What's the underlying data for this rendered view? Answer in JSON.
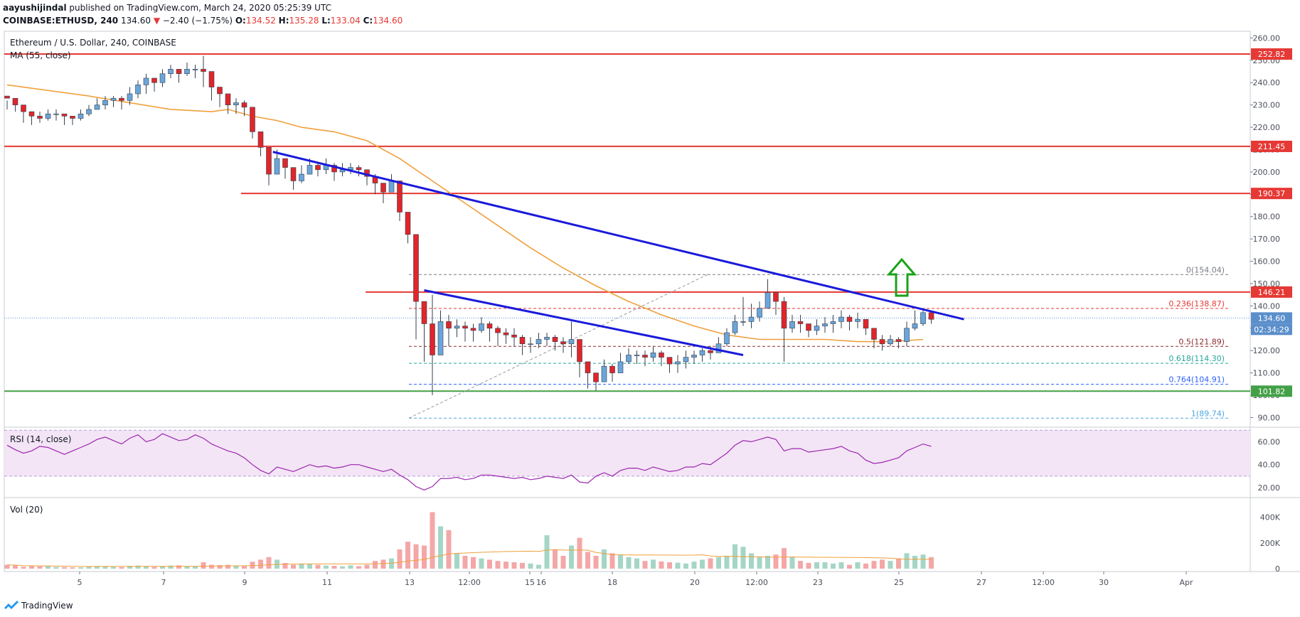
{
  "header": {
    "publisher": "aayushijindal",
    "published_text": "published on TradingView.com, March 24, 2020 05:25:39 UTC",
    "symbol": "COINBASE:ETHUSD, 240",
    "last": "134.60",
    "change_arrow": "▼",
    "change": "−2.40 (−1.75%)",
    "o_label": "O:",
    "o_value": "134.52",
    "h_label": "H:",
    "h_value": "135.28",
    "l_label": "L:",
    "l_value": "133.04",
    "c_label": "C:",
    "c_value": "134.60"
  },
  "legend": {
    "pair_title": "Ethereum / U.S. Dollar, 240, COINBASE",
    "ma_label": "MA (55, close)",
    "rsi_label": "RSI (14, close)",
    "vol_label": "Vol (20)"
  },
  "footer": {
    "brand": "TradingView"
  },
  "colors": {
    "up": "#6ba5d9",
    "down": "#e0252b",
    "ma": "#f0a03c",
    "trend": "#1a1adb",
    "resistance": "#e53935",
    "support": "#43a047",
    "rsi": "#9c27b0",
    "vol_up": "#a5d6c5",
    "vol_down": "#f4a7a7",
    "arrow": "#19a319"
  },
  "chart_data": {
    "type": "candlestick",
    "price_axis": {
      "ticks": [
        "260.00",
        "250.00",
        "240.00",
        "230.00",
        "220.00",
        "210.00",
        "200.00",
        "190.00",
        "180.00",
        "170.00",
        "160.00",
        "150.00",
        "140.00",
        "130.00",
        "120.00",
        "110.00",
        "100.00",
        "90.00"
      ],
      "range": [
        86,
        263
      ]
    },
    "x_ticks": [
      "5",
      "7",
      "9",
      "11",
      "13",
      "12:00",
      "15",
      "16",
      "18",
      "20",
      "12:00",
      "23",
      "25",
      "27",
      "12:00",
      "30",
      "Apr"
    ],
    "candles": [
      [
        233,
        232,
        228
      ],
      [
        230,
        232,
        227
      ],
      [
        227,
        228,
        222
      ],
      [
        225,
        227,
        221
      ],
      [
        224,
        227,
        222
      ],
      [
        226,
        228,
        223
      ],
      [
        226,
        228,
        223
      ],
      [
        225,
        226,
        221
      ],
      [
        224,
        225,
        221
      ],
      [
        226,
        228,
        223
      ],
      [
        228,
        230,
        225
      ],
      [
        230,
        233,
        228
      ],
      [
        232,
        234,
        228
      ],
      [
        233,
        234,
        229
      ],
      [
        232,
        234,
        228
      ],
      [
        235,
        238,
        230
      ],
      [
        239,
        241,
        233
      ],
      [
        242,
        244,
        235
      ],
      [
        240,
        242,
        236
      ],
      [
        244,
        246,
        238
      ],
      [
        246,
        248,
        242
      ],
      [
        244,
        246,
        240
      ],
      [
        246,
        249,
        243
      ],
      [
        246,
        248,
        242
      ],
      [
        245,
        252,
        238
      ],
      [
        238,
        240,
        232
      ],
      [
        235,
        237,
        229
      ],
      [
        230,
        232,
        226
      ],
      [
        231,
        233,
        226
      ],
      [
        229,
        232,
        225
      ],
      [
        218,
        221,
        215
      ],
      [
        211,
        214,
        207
      ],
      [
        199,
        204,
        194
      ],
      [
        206,
        210,
        201
      ],
      [
        202,
        206,
        197
      ],
      [
        196,
        199,
        192
      ],
      [
        199,
        203,
        195
      ],
      [
        203,
        206,
        199
      ],
      [
        201,
        204,
        198
      ],
      [
        203,
        206,
        199
      ],
      [
        200,
        204,
        196
      ],
      [
        201,
        204,
        198
      ],
      [
        202,
        204,
        199
      ],
      [
        201,
        203,
        198
      ],
      [
        198,
        201,
        194
      ],
      [
        195,
        199,
        190
      ],
      [
        191,
        195,
        186
      ],
      [
        196,
        199,
        192
      ],
      [
        182,
        189,
        178
      ],
      [
        172,
        178,
        168
      ],
      [
        142,
        145,
        125
      ],
      [
        132,
        142,
        115
      ],
      [
        118,
        145,
        100
      ],
      [
        133,
        138,
        125
      ],
      [
        130,
        136,
        122
      ],
      [
        131,
        134,
        126
      ],
      [
        130,
        133,
        124
      ],
      [
        129,
        132,
        124
      ],
      [
        132,
        135,
        128
      ],
      [
        130,
        133,
        124
      ],
      [
        128,
        131,
        122
      ],
      [
        127,
        130,
        123
      ],
      [
        126,
        130,
        122
      ],
      [
        123,
        127,
        118
      ],
      [
        123,
        126,
        119
      ],
      [
        125,
        128,
        121
      ],
      [
        126,
        128,
        122
      ],
      [
        124,
        127,
        120
      ],
      [
        123,
        126,
        119
      ],
      [
        125,
        133,
        117
      ],
      [
        115,
        122,
        108
      ],
      [
        110,
        114,
        103
      ],
      [
        106,
        110,
        102
      ],
      [
        113,
        116,
        108
      ],
      [
        110,
        114,
        106
      ],
      [
        115,
        119,
        110
      ],
      [
        118,
        121,
        114
      ],
      [
        118,
        120,
        114
      ],
      [
        117,
        120,
        113
      ],
      [
        119,
        122,
        115
      ],
      [
        117,
        120,
        113
      ],
      [
        114,
        117,
        110
      ],
      [
        115,
        118,
        110
      ],
      [
        117,
        120,
        112
      ],
      [
        118,
        120,
        114
      ],
      [
        120,
        121,
        115
      ],
      [
        119,
        122,
        116
      ],
      [
        123,
        126,
        119
      ],
      [
        128,
        130,
        122
      ],
      [
        133,
        136,
        127
      ],
      [
        133,
        144,
        131
      ],
      [
        135,
        141,
        130
      ],
      [
        139,
        142,
        133
      ],
      [
        146,
        152,
        139
      ],
      [
        142,
        145,
        136
      ],
      [
        130,
        144,
        115
      ],
      [
        133,
        136,
        128
      ],
      [
        132,
        136,
        128
      ],
      [
        129,
        132,
        126
      ],
      [
        131,
        134,
        127
      ],
      [
        132,
        135,
        128
      ],
      [
        133,
        136,
        128
      ],
      [
        135,
        138,
        130
      ],
      [
        133,
        136,
        129
      ],
      [
        134,
        137,
        130
      ],
      [
        130,
        133,
        127
      ],
      [
        125,
        129,
        121
      ],
      [
        123,
        127,
        120
      ],
      [
        125,
        127,
        122
      ],
      [
        124,
        126,
        121
      ],
      [
        130,
        133,
        122
      ],
      [
        132,
        138,
        129
      ],
      [
        137,
        139,
        131
      ],
      [
        134,
        137,
        132
      ]
    ],
    "ma55": [
      [
        0,
        239
      ],
      [
        10,
        234
      ],
      [
        20,
        228
      ],
      [
        25,
        227
      ],
      [
        27,
        228
      ],
      [
        30,
        225
      ],
      [
        33,
        223
      ],
      [
        36,
        220
      ],
      [
        40,
        218
      ],
      [
        44,
        214
      ],
      [
        48,
        206
      ],
      [
        52,
        196
      ],
      [
        56,
        186
      ],
      [
        60,
        176
      ],
      [
        64,
        166
      ],
      [
        68,
        157
      ],
      [
        72,
        149
      ],
      [
        76,
        142
      ],
      [
        80,
        136
      ],
      [
        84,
        131
      ],
      [
        88,
        127
      ],
      [
        92,
        125
      ],
      [
        96,
        125
      ],
      [
        100,
        125
      ],
      [
        104,
        124
      ],
      [
        108,
        124
      ],
      [
        112,
        125
      ]
    ],
    "horizontal_levels": [
      {
        "value": 252.82,
        "label": "252.82",
        "color": "resistance",
        "x_start": 0
      },
      {
        "value": 211.45,
        "label": "211.45",
        "color": "resistance",
        "x_start": 0
      },
      {
        "value": 190.37,
        "label": "190.37",
        "color": "resistance",
        "x_start": 0.19
      },
      {
        "value": 146.21,
        "label": "146.21",
        "color": "resistance",
        "x_start": 0.29
      },
      {
        "value": 101.82,
        "label": "101.82",
        "color": "support",
        "x_start": 0
      }
    ],
    "current_price": {
      "value": 134.6,
      "label": "134.60",
      "countdown": "02:34:29"
    },
    "fib_levels": [
      {
        "ratio": "0",
        "value": 154.04,
        "label": "0(154.04)",
        "color": "#787b86"
      },
      {
        "ratio": "0.236",
        "value": 138.87,
        "label": "0.236(138.87)",
        "color": "#e53935"
      },
      {
        "ratio": "0.5",
        "value": 121.89,
        "label": "0.5(121.89)",
        "color": "#8b2c2c"
      },
      {
        "ratio": "0.618",
        "value": 114.3,
        "label": "0.618(114.30)",
        "color": "#26a69a"
      },
      {
        "ratio": "0.764",
        "value": 104.91,
        "label": "0.764(104.91)",
        "color": "#2962ff"
      },
      {
        "ratio": "1",
        "value": 89.74,
        "label": "1(89.74)",
        "color": "#4ea7e0"
      }
    ],
    "trendlines": [
      {
        "from": [
          32.5,
          209
        ],
        "to": [
          117,
          134
        ]
      },
      {
        "from": [
          51,
          147
        ],
        "to": [
          90,
          118
        ]
      }
    ],
    "rsi": {
      "ticks": [
        "60.00",
        "40.00",
        "20.00"
      ],
      "range": [
        12,
        72
      ],
      "band": [
        30,
        70
      ],
      "values": [
        57,
        53,
        50,
        52,
        56,
        55,
        52,
        49,
        52,
        55,
        58,
        62,
        64,
        61,
        58,
        63,
        66,
        60,
        62,
        67,
        64,
        61,
        62,
        66,
        63,
        58,
        55,
        52,
        50,
        46,
        40,
        35,
        32,
        38,
        36,
        34,
        37,
        40,
        38,
        39,
        37,
        38,
        40,
        40,
        38,
        36,
        34,
        36,
        31,
        27,
        21,
        18,
        21,
        28,
        28,
        29,
        27,
        28,
        31,
        31,
        30,
        29,
        28,
        29,
        27,
        28,
        30,
        29,
        28,
        31,
        25,
        24,
        30,
        33,
        30,
        35,
        37,
        37,
        35,
        38,
        36,
        34,
        35,
        38,
        38,
        41,
        40,
        45,
        50,
        57,
        61,
        60,
        62,
        64,
        62,
        52,
        54,
        54,
        51,
        52,
        53,
        54,
        56,
        52,
        50,
        44,
        41,
        42,
        44,
        46,
        52,
        55,
        58,
        56
      ]
    },
    "volume": {
      "ticks": [
        "400K",
        "200K",
        "0"
      ],
      "range": [
        0,
        520
      ],
      "values": [
        30,
        25,
        15,
        20,
        18,
        20,
        14,
        12,
        10,
        10,
        16,
        20,
        18,
        14,
        12,
        22,
        24,
        20,
        14,
        20,
        24,
        26,
        20,
        18,
        50,
        30,
        28,
        30,
        22,
        20,
        54,
        70,
        90,
        70,
        44,
        30,
        40,
        36,
        30,
        24,
        22,
        18,
        26,
        20,
        30,
        60,
        70,
        80,
        150,
        210,
        190,
        180,
        440,
        330,
        300,
        120,
        100,
        90,
        80,
        70,
        60,
        55,
        50,
        45,
        40,
        30,
        260,
        150,
        100,
        180,
        240,
        130,
        100,
        150,
        120,
        110,
        90,
        80,
        60,
        70,
        56,
        50,
        46,
        40,
        55,
        70,
        80,
        90,
        100,
        190,
        170,
        120,
        90,
        100,
        110,
        160,
        90,
        60,
        45,
        50,
        50,
        40,
        50,
        30,
        50,
        40,
        60,
        70,
        60,
        80,
        120,
        100,
        110,
        90
      ]
    }
  }
}
